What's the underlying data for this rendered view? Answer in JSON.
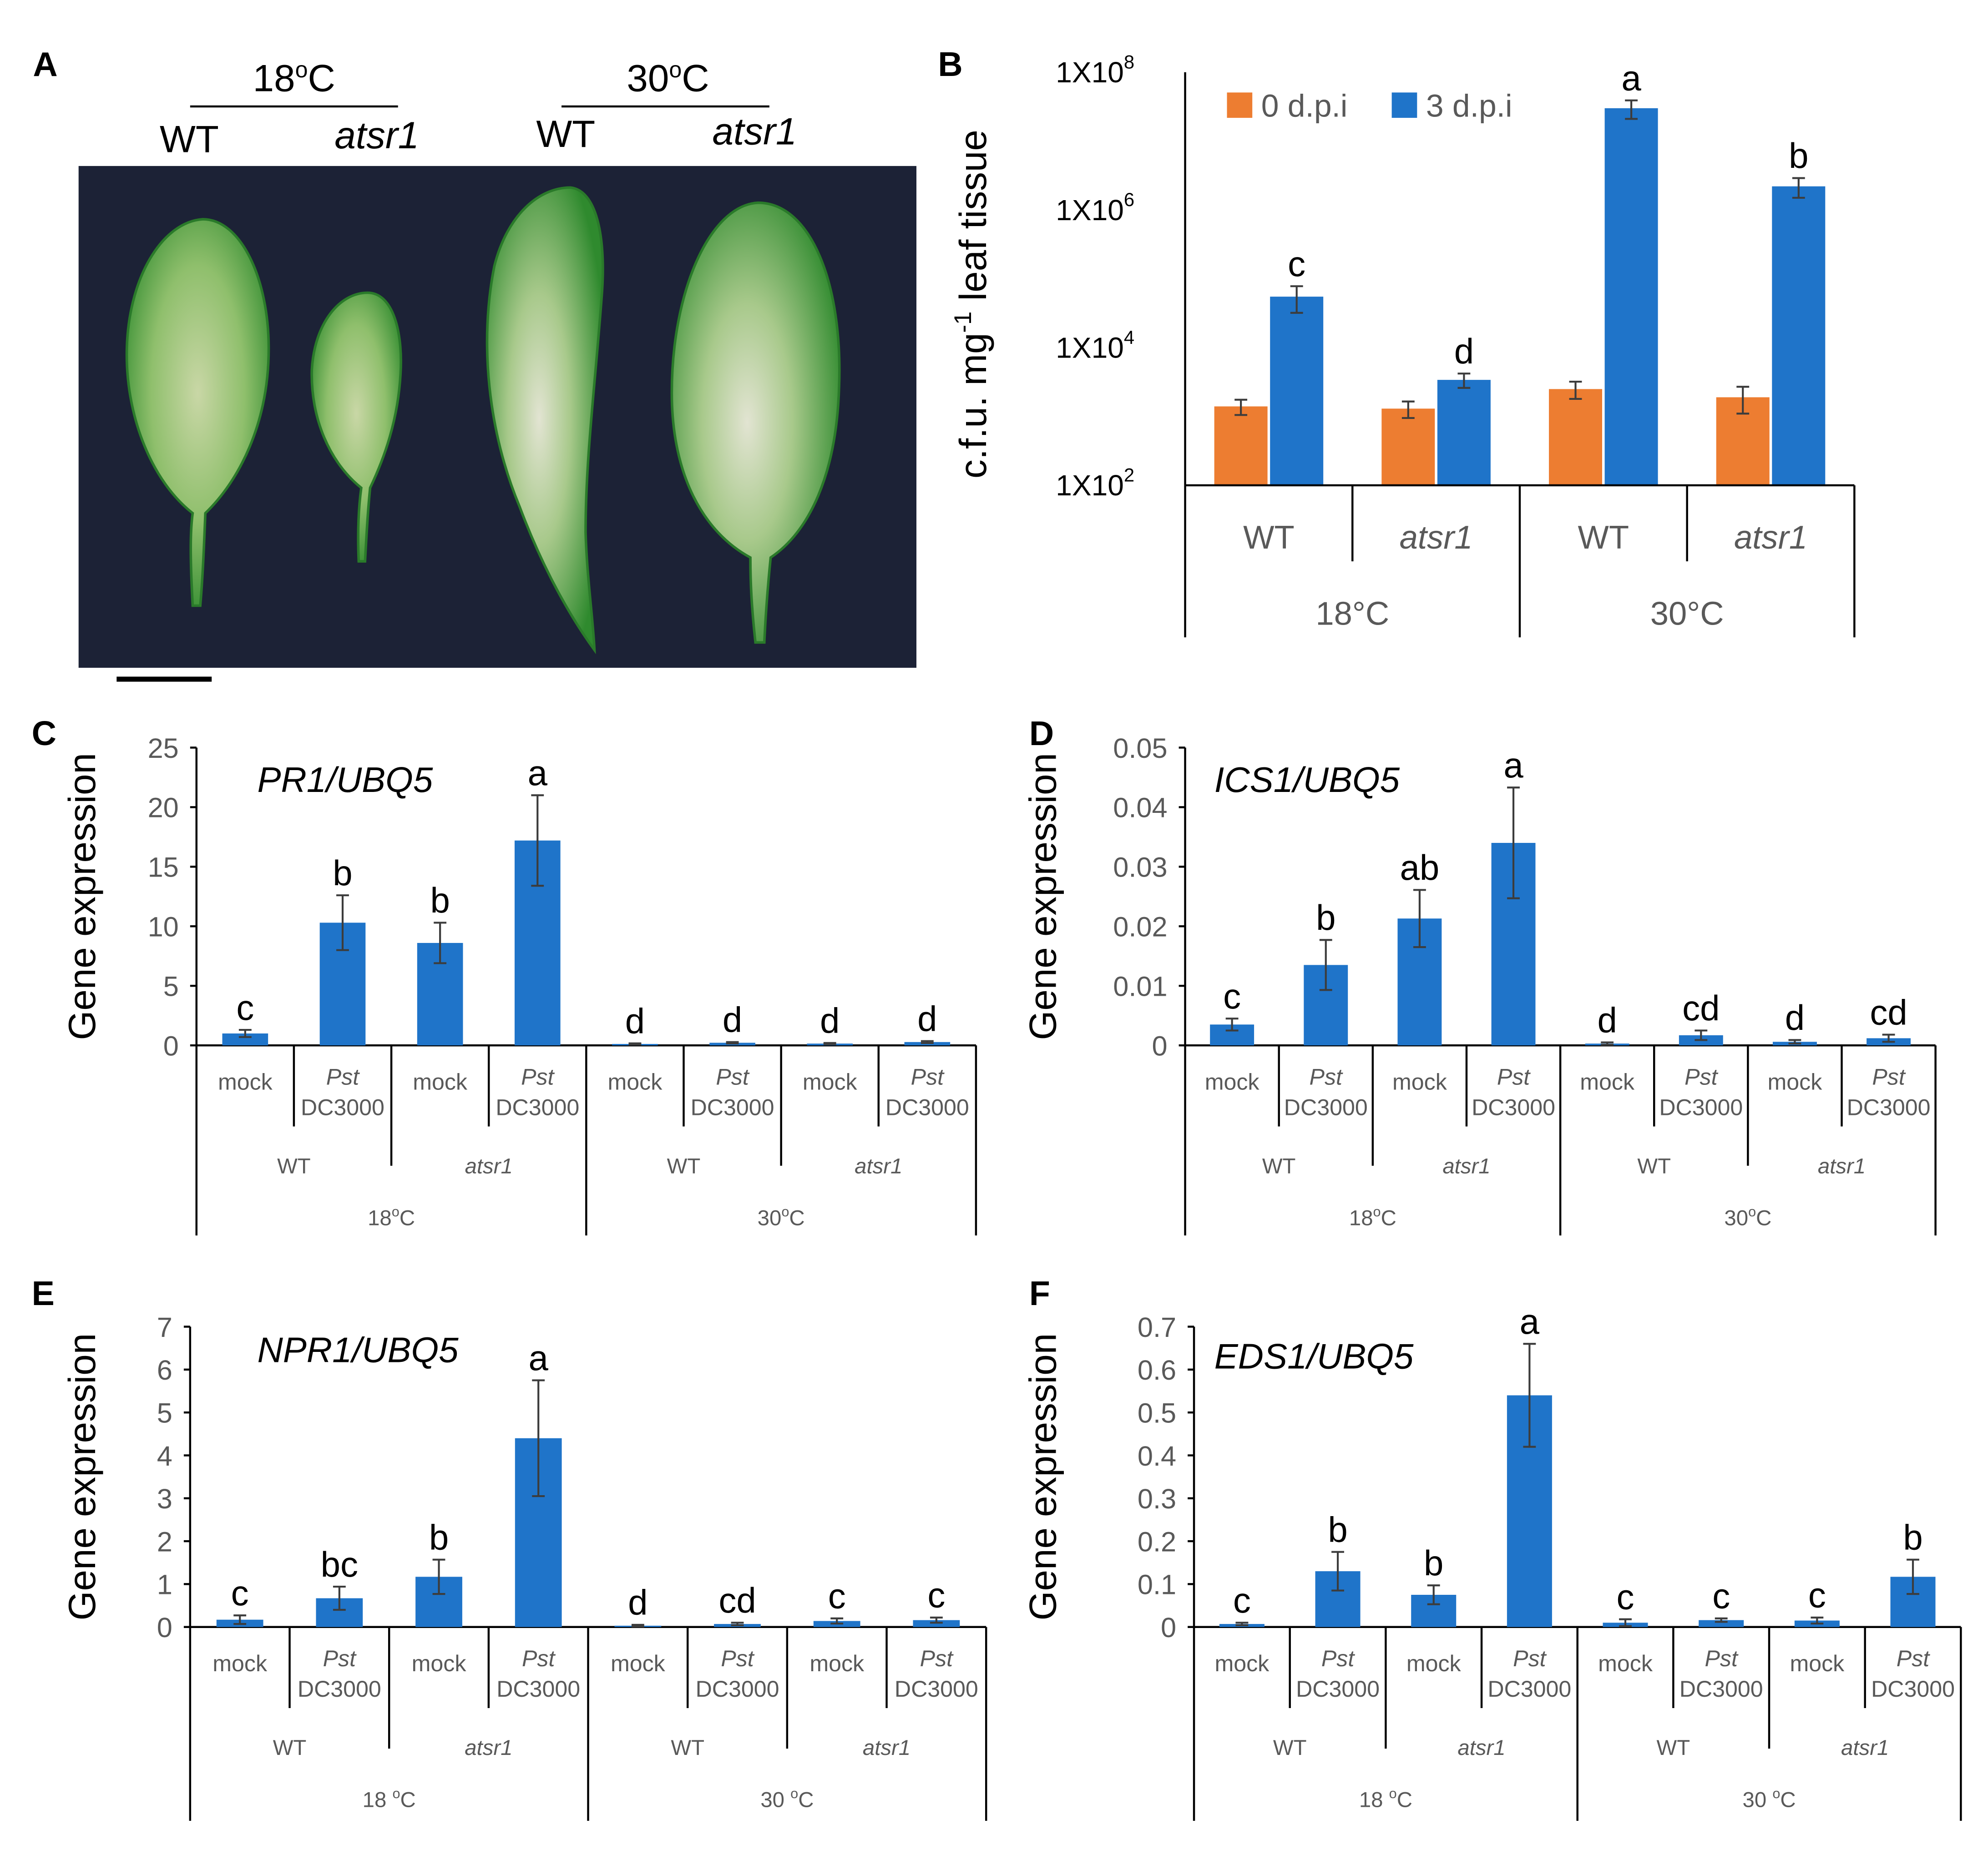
{
  "panel_a": {
    "letter": "A",
    "temp_18": "18",
    "temp_30": "30",
    "deg_sup": "o",
    "c_unit": "C",
    "wt": "WT",
    "mutant": "atsr1",
    "photo_bg": "#1c2236",
    "leaf_green": "#2e8b2c"
  },
  "chart_data": [
    {
      "id": "B",
      "type": "bar",
      "scale": "log",
      "ylabel_main": "c.f.u. mg",
      "ylabel_sup": "-1",
      "ylabel_end": " leaf tissue",
      "tick_base": "1X10",
      "tick_exponents": [
        "2",
        "4",
        "6",
        "8"
      ],
      "ylim": [
        100,
        100000000
      ],
      "categories": [
        "WT",
        "atsr1",
        "WT",
        "atsr1"
      ],
      "groups": [
        "18°C",
        "30°C"
      ],
      "series": [
        {
          "name": "0 d.p.i",
          "color": "#ed7d31",
          "values": [
            1400,
            1300,
            2500,
            1900
          ],
          "errors": [
            350,
            350,
            700,
            800
          ]
        },
        {
          "name": "3 d.p.i",
          "color": "#1f74c9",
          "values": [
            55000,
            3400,
            30000000,
            2200000
          ],
          "errors": [
            23000,
            800,
            9000000,
            700000
          ]
        }
      ],
      "significance": [
        "c",
        "d",
        "a",
        "b"
      ]
    },
    {
      "id": "C",
      "type": "bar",
      "title": "PR1/UBQ5",
      "ylabel": "Gene expression",
      "yticks": [
        "0",
        "5",
        "10",
        "15",
        "20",
        "25"
      ],
      "ylim": [
        0,
        25
      ],
      "x": [
        "mock",
        "Pst",
        "mock",
        "Pst",
        "mock",
        "Pst",
        "mock",
        "Pst"
      ],
      "x_sub": "DC3000",
      "genotypes": [
        "WT",
        "atsr1",
        "WT",
        "atsr1"
      ],
      "temps": [
        "18",
        "30"
      ],
      "deg_sup": "o",
      "c_unit": "C",
      "values": [
        1.0,
        10.3,
        8.6,
        17.2,
        0.12,
        0.22,
        0.15,
        0.28
      ],
      "errors": [
        0.3,
        2.3,
        1.7,
        3.8,
        0.05,
        0.06,
        0.05,
        0.08
      ],
      "significance": [
        "c",
        "b",
        "b",
        "a",
        "d",
        "d",
        "d",
        "d"
      ],
      "color": "#1f74c9"
    },
    {
      "id": "D",
      "type": "bar",
      "title": "ICS1/UBQ5",
      "ylabel": "Gene expression",
      "yticks": [
        "0",
        "0.01",
        "0.02",
        "0.03",
        "0.04",
        "0.05"
      ],
      "ylim": [
        0,
        0.05
      ],
      "x": [
        "mock",
        "Pst",
        "mock",
        "Pst",
        "mock",
        "Pst",
        "mock",
        "Pst"
      ],
      "x_sub": "DC3000",
      "genotypes": [
        "WT",
        "atsr1",
        "WT",
        "atsr1"
      ],
      "temps": [
        "18",
        "30"
      ],
      "deg_sup": "o",
      "c_unit": "C",
      "values": [
        0.0035,
        0.0135,
        0.0213,
        0.034,
        0.0003,
        0.0017,
        0.0006,
        0.0012
      ],
      "errors": [
        0.001,
        0.0042,
        0.0048,
        0.0093,
        0.0002,
        0.0008,
        0.0003,
        0.0006
      ],
      "significance": [
        "c",
        "b",
        "ab",
        "a",
        "d",
        "cd",
        "d",
        "cd"
      ],
      "color": "#1f74c9"
    },
    {
      "id": "E",
      "type": "bar",
      "title": "NPR1/UBQ5",
      "ylabel": "Gene expression",
      "yticks": [
        "0",
        "1",
        "2",
        "3",
        "4",
        "5",
        "6",
        "7"
      ],
      "ylim": [
        0,
        7
      ],
      "x": [
        "mock",
        "Pst",
        "mock",
        "Pst",
        "mock",
        "Pst",
        "mock",
        "Pst"
      ],
      "x_sub": "DC3000",
      "genotypes": [
        "WT",
        "atsr1",
        "WT",
        "atsr1"
      ],
      "temps": [
        "18 ",
        "30 "
      ],
      "deg_sup": "o",
      "c_unit": "C",
      "values": [
        0.17,
        0.67,
        1.17,
        4.4,
        0.03,
        0.07,
        0.14,
        0.16
      ],
      "errors": [
        0.1,
        0.27,
        0.4,
        1.35,
        0.02,
        0.03,
        0.06,
        0.06
      ],
      "significance": [
        "c",
        "bc",
        "b",
        "a",
        "d",
        "cd",
        "c",
        "c"
      ],
      "color": "#1f74c9"
    },
    {
      "id": "F",
      "type": "bar",
      "title": "EDS1/UBQ5",
      "ylabel": "Gene expression",
      "yticks": [
        "0",
        "0.1",
        "0.2",
        "0.3",
        "0.4",
        "0.5",
        "0.6",
        "0.7"
      ],
      "ylim": [
        0,
        0.7
      ],
      "x": [
        "mock",
        "Pst",
        "mock",
        "Pst",
        "mock",
        "Pst",
        "mock",
        "Pst"
      ],
      "x_sub": "DC3000",
      "genotypes": [
        "WT",
        "atsr1",
        "WT",
        "atsr1"
      ],
      "temps": [
        "18 ",
        "30 "
      ],
      "deg_sup": "o",
      "c_unit": "C",
      "values": [
        0.007,
        0.13,
        0.075,
        0.54,
        0.01,
        0.016,
        0.015,
        0.117
      ],
      "errors": [
        0.003,
        0.045,
        0.022,
        0.12,
        0.008,
        0.004,
        0.007,
        0.04
      ],
      "significance": [
        "c",
        "b",
        "b",
        "a",
        "c",
        "c",
        "c",
        "b"
      ],
      "color": "#1f74c9"
    }
  ]
}
